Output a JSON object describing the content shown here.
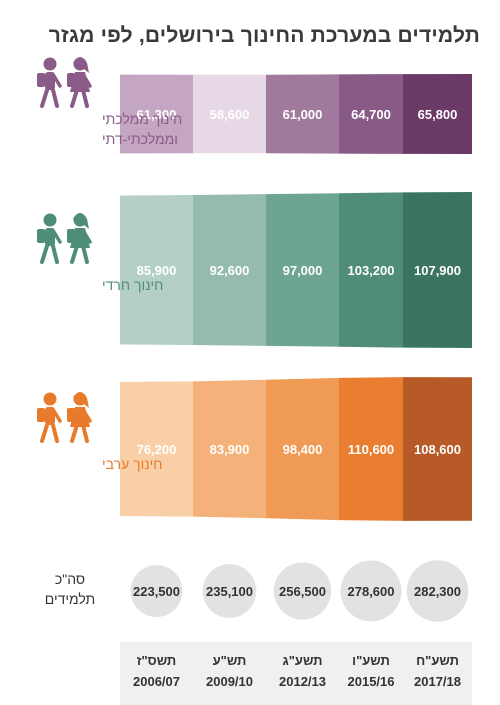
{
  "title": "תלמידים במערכת החינוך בירושלים, לפי מגזר",
  "chart_data": {
    "type": "table",
    "categories": [
      "תשס\"ז 2006/07",
      "תש\"ע 2009/10",
      "תשע\"ג 2012/13",
      "תשע\"ו 2015/16",
      "תשע\"ח 2017/18"
    ],
    "years": [
      {
        "heb": "תשס\"ז",
        "num": "2006/07"
      },
      {
        "heb": "תש\"ע",
        "num": "2009/10"
      },
      {
        "heb": "תשע\"ג",
        "num": "2012/13"
      },
      {
        "heb": "תשע\"ו",
        "num": "2015/16"
      },
      {
        "heb": "תשע\"ח",
        "num": "2017/18"
      }
    ],
    "series": [
      {
        "name": "חינוך ממלכתי וממלכתי-דתי",
        "label_lines": [
          "חינוך ממלכתי",
          "וממלכתי-דתי"
        ],
        "values": [
          61300,
          58600,
          61000,
          64700,
          65800
        ],
        "value_labels": [
          "61,300",
          "58,600",
          "61,000",
          "64,700",
          "65,800"
        ],
        "colors": [
          "#c4a6c2",
          "#e6d8e4",
          "#a07a9d",
          "#895a86",
          "#6b3a67"
        ],
        "label_color": "#8a5b87",
        "icon_color": "#8a5b87"
      },
      {
        "name": "חינוך חרדי",
        "label_lines": [
          "חינוך חרדי"
        ],
        "values": [
          85900,
          92600,
          97000,
          103200,
          107900
        ],
        "value_labels": [
          "85,900",
          "92,600",
          "97,000",
          "103,200",
          "107,900"
        ],
        "colors": [
          "#b4cfc6",
          "#94bbae",
          "#6ea493",
          "#4f8c79",
          "#3b7562"
        ],
        "label_color": "#4e8e78",
        "icon_color": "#4e8e78"
      },
      {
        "name": "חינוך ערבי",
        "label_lines": [
          "חינוך ערבי"
        ],
        "values": [
          76200,
          83900,
          98400,
          110600,
          108600
        ],
        "value_labels": [
          "76,200",
          "83,900",
          "98,400",
          "110,600",
          "108,600"
        ],
        "colors": [
          "#f8cfa6",
          "#f4b27a",
          "#ef9a55",
          "#ea7e30",
          "#b75a28"
        ],
        "label_color": "#e87a2c",
        "icon_color": "#e87a2c"
      }
    ],
    "totals": {
      "label_lines": [
        "סה\"כ",
        "תלמידים"
      ],
      "values": [
        223500,
        235100,
        256500,
        278600,
        282300
      ],
      "value_labels": [
        "223,500",
        "235,100",
        "256,500",
        "278,600",
        "282,300"
      ],
      "circle_color": "#e2e2e2"
    }
  }
}
